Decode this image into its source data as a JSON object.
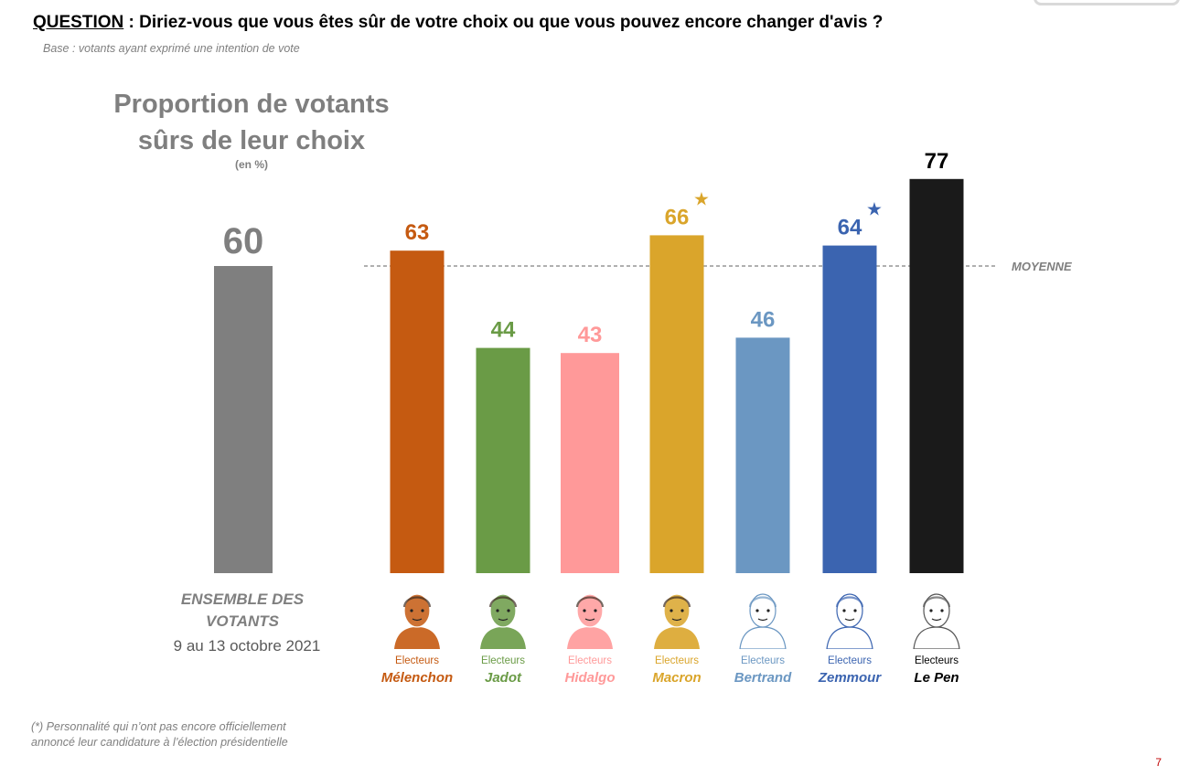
{
  "header": {
    "question_label": "QUESTION",
    "question_sep": " : ",
    "question_text": "Diriez-vous que vous êtes sûr de votre choix ou que vous pouvez encore changer d'avis ?",
    "base": "Base : votants ayant exprimé une intention de vote"
  },
  "chart_title": {
    "line1": "Proportion de votants",
    "line2": "sûrs de leur choix",
    "unit": "(en %)"
  },
  "total": {
    "label_line1": "ENSEMBLE DES",
    "label_line2": "VOTANTS",
    "date": "9 au 13 octobre 2021"
  },
  "average_label": "MOYENNE",
  "candidates": [
    {
      "prefix": "Electeurs",
      "name": "Mélenchon",
      "color": "#c55a11",
      "portrait_icon": "melenchon-portrait-icon"
    },
    {
      "prefix": "Electeurs",
      "name": "Jadot",
      "color": "#6a9b46",
      "portrait_icon": "jadot-portrait-icon"
    },
    {
      "prefix": "Electeurs",
      "name": "Hidalgo",
      "color": "#ff9999",
      "portrait_icon": "hidalgo-portrait-icon"
    },
    {
      "prefix": "Electeurs",
      "name": "Macron",
      "color": "#daa52b",
      "portrait_icon": "macron-portrait-icon"
    },
    {
      "prefix": "Electeurs",
      "name": "Bertrand",
      "color": "#6b97c2",
      "portrait_icon": "bertrand-portrait-icon"
    },
    {
      "prefix": "Electeurs",
      "name": "Zemmour",
      "color": "#3b64b0",
      "portrait_icon": "zemmour-portrait-icon"
    },
    {
      "prefix": "Electeurs",
      "name": "Le Pen",
      "color": "#000000",
      "portrait_icon": "lepen-portrait-icon"
    }
  ],
  "chart_data": {
    "type": "bar",
    "title": "Proportion de votants sûrs de leur choix",
    "unit": "(en %)",
    "categories": [
      "ENSEMBLE DES VOTANTS",
      "Electeurs Mélenchon",
      "Electeurs Jadot",
      "Electeurs Hidalgo",
      "Electeurs Macron",
      "Electeurs Bertrand",
      "Electeurs Zemmour",
      "Electeurs Le Pen"
    ],
    "values": [
      60,
      63,
      44,
      43,
      66,
      46,
      64,
      77
    ],
    "colors": [
      "#7f7f7f",
      "#c55a11",
      "#6a9b46",
      "#ff9999",
      "#daa52b",
      "#6b97c2",
      "#3b64b0",
      "#1a1a1a"
    ],
    "label_colors": [
      "#7f7f7f",
      "#c55a11",
      "#6a9b46",
      "#ff9999",
      "#daa52b",
      "#6b97c2",
      "#3b64b0",
      "#000000"
    ],
    "starred": [
      false,
      false,
      false,
      false,
      true,
      false,
      true,
      false
    ],
    "star_glyph": "★",
    "average": 60,
    "average_label": "MOYENNE",
    "ylim": [
      0,
      100
    ],
    "grid": false,
    "legend": "none"
  },
  "footnote": {
    "line1": "(*) Personnalité qui n’ont pas encore officiellement",
    "line2": "annoncé leur candidature à l’élection présidentielle"
  },
  "page_number": "7"
}
